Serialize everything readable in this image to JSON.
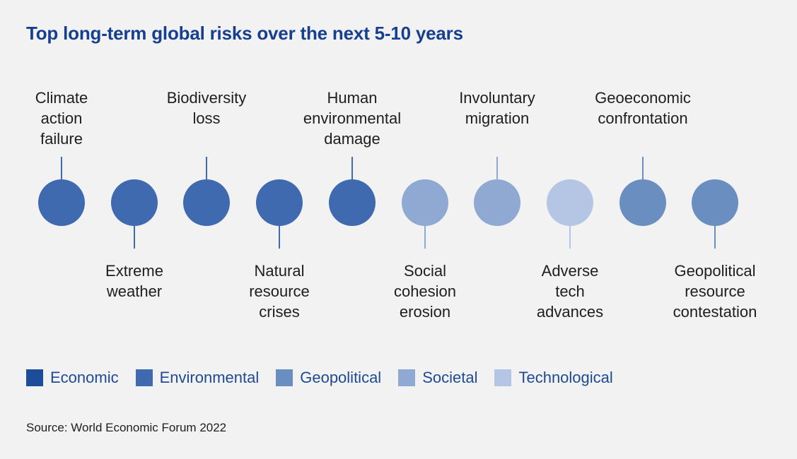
{
  "title": "Top long-term global risks over the next 5-10 years",
  "categories": {
    "economic": "#1b4d9b",
    "environmental": "#3f6ab0",
    "geopolitical": "#6b8ec1",
    "societal": "#8fa9d2",
    "technological": "#b4c6e3"
  },
  "risks": [
    {
      "label": "Climate\naction\nfailure",
      "category": "environmental",
      "position": "above"
    },
    {
      "label": "Extreme\nweather",
      "category": "environmental",
      "position": "below"
    },
    {
      "label": "Biodiversity\nloss",
      "category": "environmental",
      "position": "above"
    },
    {
      "label": "Natural\nresource\ncrises",
      "category": "environmental",
      "position": "below"
    },
    {
      "label": "Human\nenvironmental\ndamage",
      "category": "environmental",
      "position": "above"
    },
    {
      "label": "Social\ncohesion\nerosion",
      "category": "societal",
      "position": "below"
    },
    {
      "label": "Involuntary\nmigration",
      "category": "societal",
      "position": "above"
    },
    {
      "label": "Adverse\ntech\nadvances",
      "category": "technological",
      "position": "below"
    },
    {
      "label": "Geoeconomic\nconfrontation",
      "category": "geopolitical",
      "position": "above"
    },
    {
      "label": "Geopolitical\nresource\ncontestation",
      "category": "geopolitical",
      "position": "below"
    }
  ],
  "legend": [
    {
      "key": "economic",
      "label": "Economic"
    },
    {
      "key": "environmental",
      "label": "Environmental"
    },
    {
      "key": "geopolitical",
      "label": "Geopolitical"
    },
    {
      "key": "societal",
      "label": "Societal"
    },
    {
      "key": "technological",
      "label": "Technological"
    }
  ],
  "source": "Source: World Economic Forum 2022"
}
